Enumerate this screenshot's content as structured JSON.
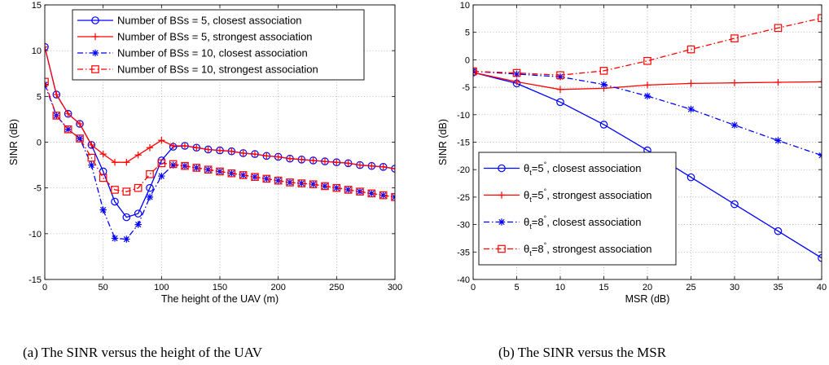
{
  "chart_data": [
    {
      "type": "line",
      "caption": "(a)  The SINR versus the height of the UAV",
      "xlabel": "The height of the UAV (m)",
      "ylabel": "SINR (dB)",
      "xlim": [
        0,
        300
      ],
      "ylim": [
        -15,
        15
      ],
      "xticks": [
        0,
        50,
        100,
        150,
        200,
        250,
        300
      ],
      "yticks": [
        -15,
        -10,
        -5,
        0,
        5,
        10,
        15
      ],
      "grid": true,
      "legend_position": "top-right",
      "x": [
        0,
        10,
        20,
        30,
        40,
        50,
        60,
        70,
        80,
        90,
        100,
        110,
        120,
        130,
        140,
        150,
        160,
        170,
        180,
        190,
        200,
        210,
        220,
        230,
        240,
        250,
        260,
        270,
        280,
        290,
        300
      ],
      "series": [
        {
          "name": "Number of BSs = 5, closest association",
          "color": "#0000ff",
          "dash": "solid",
          "marker": "circle",
          "values": [
            10.4,
            5.2,
            3.1,
            2.0,
            -0.3,
            -3.2,
            -6.5,
            -8.2,
            -7.8,
            -5.0,
            -2.0,
            -0.5,
            -0.4,
            -0.6,
            -0.8,
            -0.9,
            -1.0,
            -1.2,
            -1.3,
            -1.5,
            -1.6,
            -1.8,
            -1.9,
            -2.0,
            -2.1,
            -2.2,
            -2.3,
            -2.5,
            -2.6,
            -2.7,
            -2.9
          ]
        },
        {
          "name": "Number of BSs = 5, strongest association",
          "color": "#ff0000",
          "dash": "solid",
          "marker": "plus",
          "values": [
            10.4,
            5.2,
            3.1,
            2.0,
            -0.3,
            -1.3,
            -2.2,
            -2.2,
            -1.4,
            -0.6,
            0.2,
            -0.4,
            -0.4,
            -0.6,
            -0.8,
            -0.9,
            -1.0,
            -1.2,
            -1.3,
            -1.5,
            -1.6,
            -1.8,
            -1.9,
            -2.0,
            -2.1,
            -2.2,
            -2.3,
            -2.5,
            -2.6,
            -2.7,
            -2.9
          ]
        },
        {
          "name": "Number of BSs = 10, closest association",
          "color": "#0000ff",
          "dash": "dashdot",
          "marker": "star",
          "values": [
            6.3,
            2.9,
            1.4,
            0.4,
            -2.5,
            -7.4,
            -10.5,
            -10.6,
            -9.0,
            -6.0,
            -3.7,
            -2.5,
            -2.6,
            -2.8,
            -3.0,
            -3.2,
            -3.4,
            -3.6,
            -3.8,
            -4.0,
            -4.2,
            -4.4,
            -4.5,
            -4.6,
            -4.8,
            -5.0,
            -5.2,
            -5.4,
            -5.6,
            -5.8,
            -6.0
          ]
        },
        {
          "name": "Number of BSs = 10, strongest association",
          "color": "#ff0000",
          "dash": "dashdot",
          "marker": "square",
          "values": [
            6.6,
            2.9,
            1.4,
            0.4,
            -1.7,
            -3.9,
            -5.2,
            -5.4,
            -5.0,
            -3.5,
            -2.3,
            -2.4,
            -2.6,
            -2.8,
            -3.0,
            -3.2,
            -3.4,
            -3.6,
            -3.8,
            -4.0,
            -4.2,
            -4.4,
            -4.5,
            -4.6,
            -4.8,
            -5.0,
            -5.2,
            -5.4,
            -5.6,
            -5.8,
            -6.0
          ]
        }
      ]
    },
    {
      "type": "line",
      "caption": "(b)  The SINR versus the MSR",
      "xlabel": "MSR (dB)",
      "ylabel": "SINR (dB)",
      "xlim": [
        0,
        40
      ],
      "ylim": [
        -40,
        10
      ],
      "xticks": [
        0,
        5,
        10,
        15,
        20,
        25,
        30,
        35,
        40
      ],
      "yticks": [
        -40,
        -35,
        -30,
        -25,
        -20,
        -15,
        -10,
        -5,
        0,
        5,
        10
      ],
      "grid": true,
      "legend_position": "bottom-left",
      "x": [
        0,
        5,
        10,
        15,
        20,
        25,
        30,
        35,
        40
      ],
      "series": [
        {
          "name_main": "θ",
          "name_sub": "t",
          "name_eq": "=5",
          "name_sup": "°",
          "name_rest": ", closest association",
          "color": "#0000ff",
          "dash": "solid",
          "marker": "circle",
          "values": [
            -2.3,
            -4.3,
            -7.7,
            -11.8,
            -16.5,
            -21.4,
            -26.3,
            -31.2,
            -36.1
          ]
        },
        {
          "name_main": "θ",
          "name_sub": "t",
          "name_eq": "=5",
          "name_sup": "°",
          "name_rest": ", strongest association",
          "color": "#ff0000",
          "dash": "solid",
          "marker": "plus",
          "values": [
            -2.3,
            -4.0,
            -5.4,
            -5.2,
            -4.6,
            -4.3,
            -4.2,
            -4.1,
            -4.0
          ]
        },
        {
          "name_main": "θ",
          "name_sub": "t",
          "name_eq": "=8",
          "name_sup": "°",
          "name_rest": ", closest association",
          "color": "#0000ff",
          "dash": "dashdot",
          "marker": "star",
          "values": [
            -2.1,
            -2.6,
            -3.1,
            -4.5,
            -6.6,
            -9.0,
            -11.9,
            -14.7,
            -17.4
          ]
        },
        {
          "name_main": "θ",
          "name_sub": "t",
          "name_eq": "=8",
          "name_sup": "°",
          "name_rest": ", strongest association",
          "color": "#ff0000",
          "dash": "dashdot",
          "marker": "square",
          "values": [
            -2.1,
            -2.4,
            -2.8,
            -2.0,
            -0.2,
            1.9,
            3.9,
            5.8,
            7.6
          ]
        }
      ]
    }
  ]
}
